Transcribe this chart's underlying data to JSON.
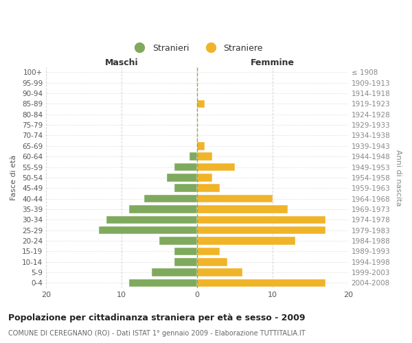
{
  "age_groups": [
    "100+",
    "95-99",
    "90-94",
    "85-89",
    "80-84",
    "75-79",
    "70-74",
    "65-69",
    "60-64",
    "55-59",
    "50-54",
    "45-49",
    "40-44",
    "35-39",
    "30-34",
    "25-29",
    "20-24",
    "15-19",
    "10-14",
    "5-9",
    "0-4"
  ],
  "birth_years": [
    "≤ 1908",
    "1909-1913",
    "1914-1918",
    "1919-1923",
    "1924-1928",
    "1929-1933",
    "1934-1938",
    "1939-1943",
    "1944-1948",
    "1949-1953",
    "1954-1958",
    "1959-1963",
    "1964-1968",
    "1969-1973",
    "1974-1978",
    "1979-1983",
    "1984-1988",
    "1989-1993",
    "1994-1998",
    "1999-2003",
    "2004-2008"
  ],
  "maschi": [
    0,
    0,
    0,
    0,
    0,
    0,
    0,
    0,
    1,
    3,
    4,
    3,
    7,
    9,
    12,
    13,
    5,
    3,
    3,
    6,
    9
  ],
  "femmine": [
    0,
    0,
    0,
    1,
    0,
    0,
    0,
    1,
    2,
    5,
    2,
    3,
    10,
    12,
    17,
    17,
    13,
    3,
    4,
    6,
    17
  ],
  "bar_color_maschi": "#7faa5e",
  "bar_color_femmine": "#f0b429",
  "background_color": "#ffffff",
  "grid_color": "#cccccc",
  "title": "Popolazione per cittadinanza straniera per età e sesso - 2009",
  "subtitle": "COMUNE DI CEREGNANO (RO) - Dati ISTAT 1° gennaio 2009 - Elaborazione TUTTITALIA.IT",
  "ylabel_left": "Fasce di età",
  "ylabel_right": "Anni di nascita",
  "xlabel_left": "Maschi",
  "xlabel_right": "Femmine",
  "legend_maschi": "Stranieri",
  "legend_femmine": "Straniere",
  "xlim": [
    -20,
    20
  ],
  "xticks": [
    -20,
    -10,
    0,
    10,
    20
  ],
  "xticklabels": [
    "20",
    "10",
    "0",
    "10",
    "20"
  ]
}
